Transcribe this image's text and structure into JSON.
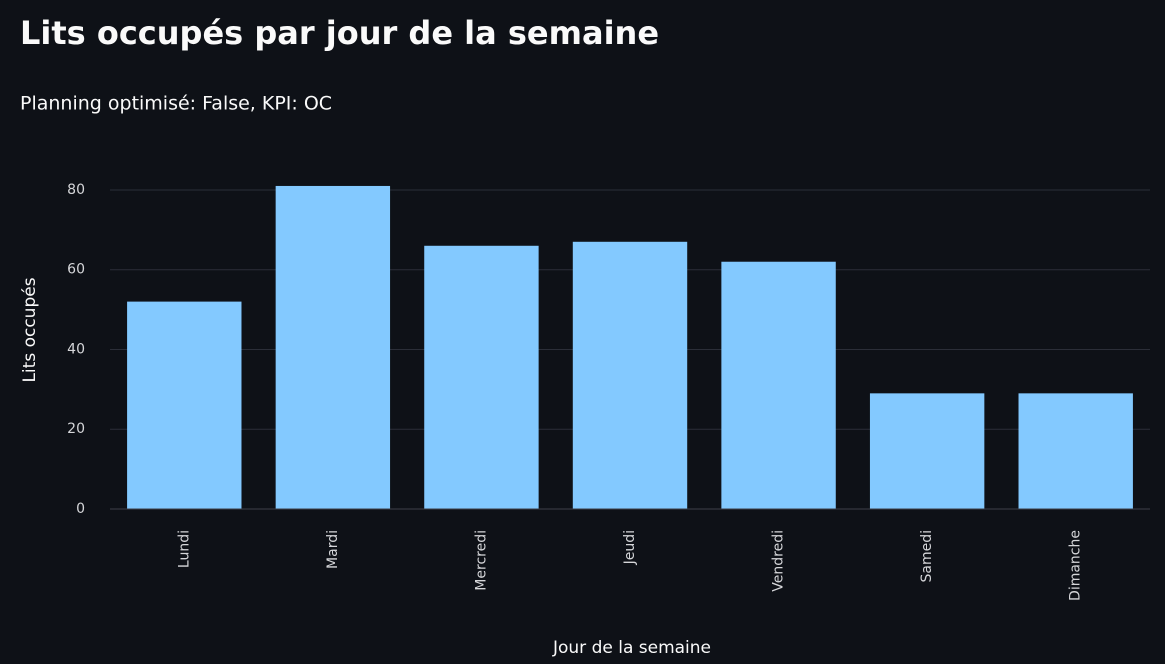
{
  "chart_data": {
    "type": "bar",
    "title": "Lits occupés par jour de la semaine",
    "subtitle": "Planning optimisé: False, KPI: OC",
    "x_label": "Jour de la semaine",
    "y_label": "Lits occupés",
    "categories": [
      "Lundi",
      "Mardi",
      "Mercredi",
      "Jeudi",
      "Vendredi",
      "Samedi",
      "Dimanche"
    ],
    "values": [
      52,
      81,
      66,
      67,
      62,
      29,
      29
    ],
    "color": "#83c9ff",
    "ylim": [
      0,
      85
    ],
    "yticks": [
      0,
      20,
      40,
      60,
      80
    ],
    "grid": true
  }
}
